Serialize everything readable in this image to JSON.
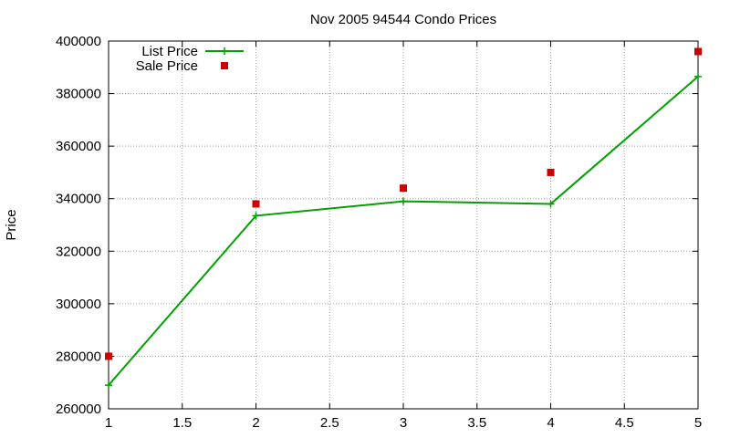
{
  "chart_data": {
    "type": "line",
    "title": "Nov 2005 94544 Condo Prices",
    "xlabel": "",
    "ylabel": "Price",
    "xlim": [
      1,
      5
    ],
    "ylim": [
      260000,
      400000
    ],
    "xticks": [
      1,
      1.5,
      2,
      2.5,
      3,
      3.5,
      4,
      4.5,
      5
    ],
    "yticks": [
      260000,
      280000,
      300000,
      320000,
      340000,
      360000,
      380000,
      400000
    ],
    "grid": true,
    "legend_position": "top-left",
    "series": [
      {
        "name": "List Price",
        "style": "line-with-plus-markers",
        "color": "#00a000",
        "x": [
          1,
          2,
          3,
          4,
          5
        ],
        "y": [
          269000,
          333500,
          339000,
          338000,
          386500
        ]
      },
      {
        "name": "Sale Price",
        "style": "square-markers",
        "color": "#cc0000",
        "x": [
          1,
          2,
          3,
          4,
          5
        ],
        "y": [
          280000,
          338000,
          344000,
          350000,
          396000
        ]
      }
    ]
  }
}
